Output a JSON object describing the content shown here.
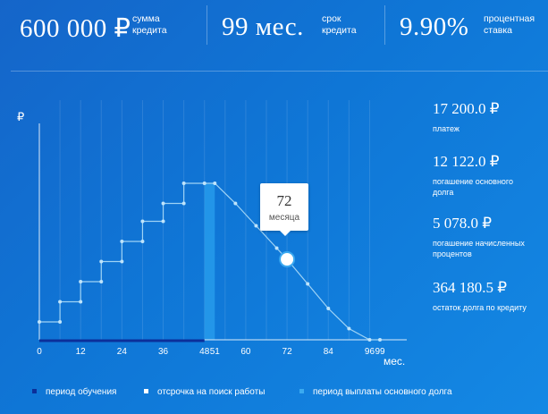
{
  "summary": {
    "amount": {
      "value": "600 000 ₽",
      "label_line1": "сумма",
      "label_line2": "кредита"
    },
    "term": {
      "value": "99 мес.",
      "label_line1": "срок",
      "label_line2": "кредита"
    },
    "rate": {
      "value": "9.90%",
      "label_line1": "процентная",
      "label_line2": "ставка"
    }
  },
  "chart": {
    "y_axis_label": "₽",
    "x_axis_label": "мес.",
    "tooltip": {
      "value": "72",
      "unit": "месяца"
    }
  },
  "chart_data": {
    "type": "line",
    "title": "",
    "xlabel": "мес.",
    "ylabel": "₽",
    "x_ticks": [
      "0",
      "12",
      "24",
      "36",
      "48",
      "51",
      "60",
      "72",
      "84",
      "96",
      "99"
    ],
    "x_tick_values": [
      0,
      12,
      24,
      36,
      48,
      51,
      60,
      72,
      84,
      96,
      99
    ],
    "xlim": [
      0,
      99
    ],
    "ylim": [
      0,
      100
    ],
    "selected_x": 72,
    "series": [
      {
        "name": "остаток долга",
        "x": [
          0,
          6,
          6,
          12,
          12,
          18,
          18,
          24,
          24,
          30,
          30,
          36,
          36,
          42,
          42,
          48,
          51,
          57,
          63,
          69,
          72,
          78,
          84,
          90,
          96,
          99
        ],
        "y": [
          8,
          8,
          17,
          17,
          26,
          26,
          35,
          35,
          44,
          44,
          53,
          53,
          61,
          61,
          70,
          70,
          70,
          61,
          51,
          41,
          36,
          25,
          14,
          5,
          0,
          0
        ]
      }
    ],
    "periods": [
      {
        "name": "период обучения",
        "from": 0,
        "to": 48,
        "color": "#0b2f9a"
      },
      {
        "name": "отсрочка на поиск работы",
        "from": 48,
        "to": 51,
        "color": "#ffffff"
      },
      {
        "name": "период выплаты основного долга",
        "from": 51,
        "to": 99,
        "color": "#3aaaf0"
      }
    ]
  },
  "details": [
    {
      "value": "17 200.0 ₽",
      "caption": "платеж"
    },
    {
      "value": "12 122.0 ₽",
      "caption": "погашение основного долга"
    },
    {
      "value": "5 078.0 ₽",
      "caption": "погашение начисленных процентов"
    },
    {
      "value": "364 180.5 ₽",
      "caption": "остаток долга по кредиту"
    }
  ],
  "legend": {
    "study": {
      "label": "период обучения",
      "color": "#0b2f9a"
    },
    "deferral": {
      "label": "отсрочка на поиск работы",
      "color": "#ffffff"
    },
    "repayment": {
      "label": "период выплаты основного долга",
      "color": "#3aaaf0"
    }
  }
}
